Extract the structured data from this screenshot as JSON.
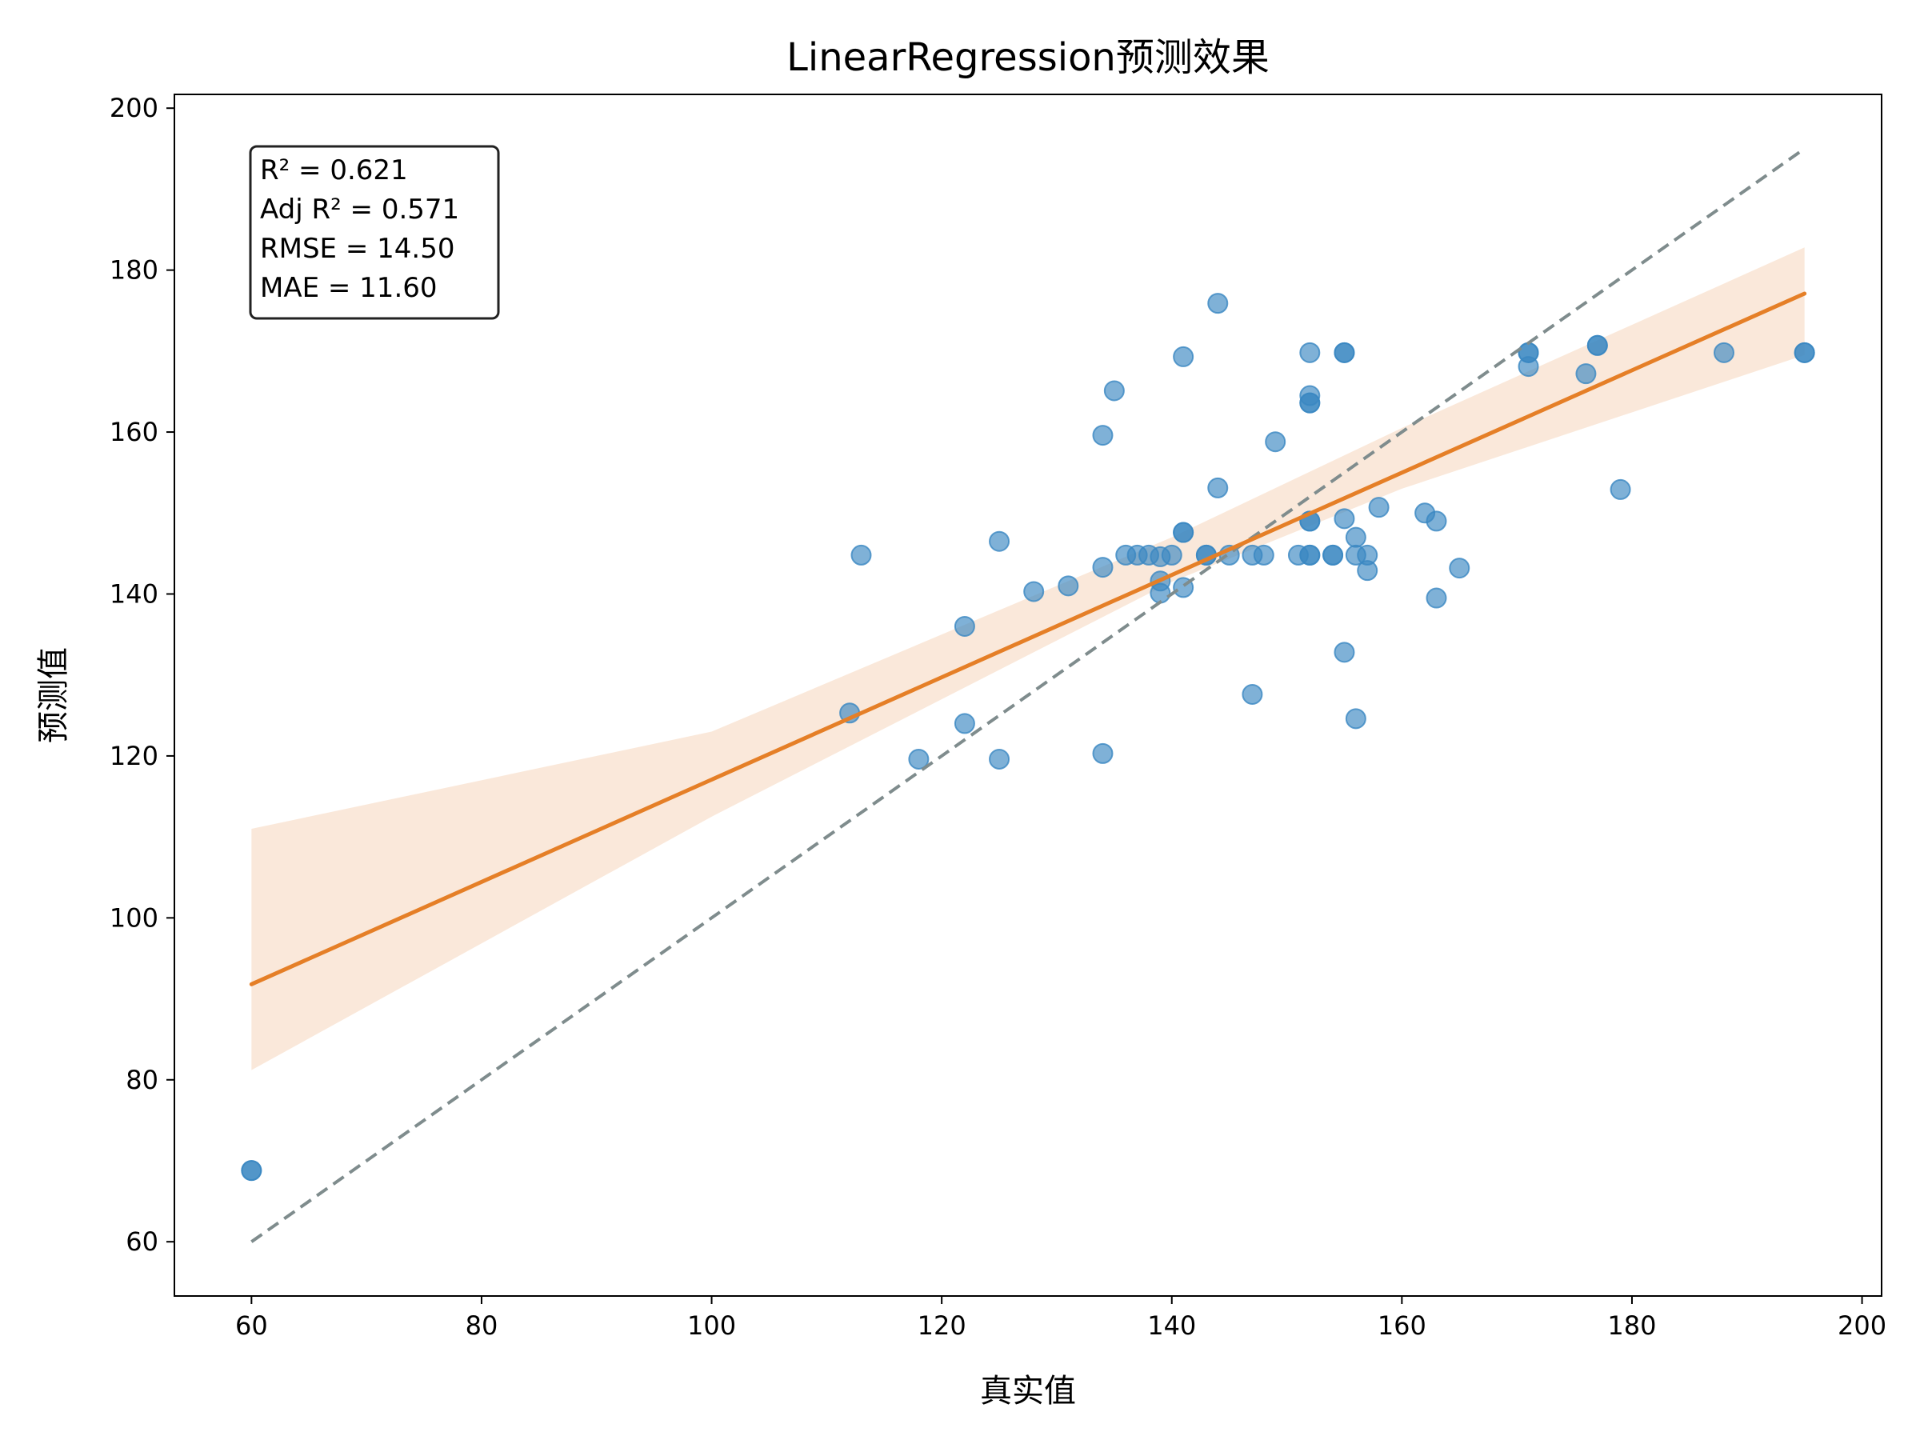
{
  "chart_data": {
    "type": "scatter",
    "title": "LinearRegression预测效果",
    "xlabel": "真实值",
    "ylabel": "预测值",
    "xlim": [
      53.3,
      201.7
    ],
    "ylim": [
      53.3,
      201.7
    ],
    "xticks": [
      60,
      80,
      100,
      120,
      140,
      160,
      180,
      200
    ],
    "yticks": [
      60,
      80,
      100,
      120,
      140,
      160,
      180,
      200
    ],
    "grid": false,
    "colors": {
      "points": "#3a87c2",
      "fit_line": "#e57f27",
      "ci_band": "#f8dcc6",
      "ideal_line": "#7f8c8d"
    },
    "stats_box": {
      "location": "top-left",
      "lines": [
        "R² = 0.621",
        "Adj R² = 0.571",
        "RMSE = 14.50",
        "MAE = 11.60"
      ]
    },
    "ideal_line": {
      "style": "dashed",
      "from": [
        60,
        60
      ],
      "to": [
        195,
        195
      ]
    },
    "fit_line": {
      "from": [
        60,
        91.8
      ],
      "to": [
        195,
        177.1
      ]
    },
    "confidence_band": {
      "x": [
        60,
        100,
        140,
        160,
        195
      ],
      "lower": [
        81.2,
        112.5,
        141.5,
        153.0,
        169.5
      ],
      "upper": [
        111.0,
        123.0,
        147.0,
        160.5,
        182.8
      ]
    },
    "points": [
      {
        "x": 60,
        "y": 68.8
      },
      {
        "x": 60,
        "y": 68.8
      },
      {
        "x": 112,
        "y": 125.3
      },
      {
        "x": 113,
        "y": 144.8
      },
      {
        "x": 118,
        "y": 119.6
      },
      {
        "x": 122,
        "y": 124.0
      },
      {
        "x": 122,
        "y": 136.0
      },
      {
        "x": 125,
        "y": 119.6
      },
      {
        "x": 125,
        "y": 146.5
      },
      {
        "x": 128,
        "y": 140.3
      },
      {
        "x": 131,
        "y": 141.0
      },
      {
        "x": 134,
        "y": 120.3
      },
      {
        "x": 134,
        "y": 143.3
      },
      {
        "x": 134,
        "y": 159.6
      },
      {
        "x": 135,
        "y": 165.1
      },
      {
        "x": 136,
        "y": 144.8
      },
      {
        "x": 137,
        "y": 144.8
      },
      {
        "x": 138,
        "y": 144.8
      },
      {
        "x": 139,
        "y": 141.6
      },
      {
        "x": 139,
        "y": 140.1
      },
      {
        "x": 139,
        "y": 144.6
      },
      {
        "x": 140,
        "y": 144.8
      },
      {
        "x": 141,
        "y": 140.8
      },
      {
        "x": 141,
        "y": 147.6
      },
      {
        "x": 141,
        "y": 147.6
      },
      {
        "x": 141,
        "y": 169.3
      },
      {
        "x": 143,
        "y": 144.8
      },
      {
        "x": 143,
        "y": 144.8
      },
      {
        "x": 144,
        "y": 153.1
      },
      {
        "x": 144,
        "y": 175.9
      },
      {
        "x": 145,
        "y": 144.8
      },
      {
        "x": 147,
        "y": 144.8
      },
      {
        "x": 147,
        "y": 127.6
      },
      {
        "x": 148,
        "y": 144.8
      },
      {
        "x": 149,
        "y": 158.8
      },
      {
        "x": 151,
        "y": 144.8
      },
      {
        "x": 152,
        "y": 144.8
      },
      {
        "x": 152,
        "y": 144.8
      },
      {
        "x": 152,
        "y": 149.0
      },
      {
        "x": 152,
        "y": 149.0
      },
      {
        "x": 152,
        "y": 163.6
      },
      {
        "x": 152,
        "y": 163.6
      },
      {
        "x": 152,
        "y": 164.5
      },
      {
        "x": 152,
        "y": 169.8
      },
      {
        "x": 154,
        "y": 144.8
      },
      {
        "x": 154,
        "y": 144.8
      },
      {
        "x": 155,
        "y": 132.8
      },
      {
        "x": 155,
        "y": 149.3
      },
      {
        "x": 155,
        "y": 169.8
      },
      {
        "x": 155,
        "y": 169.8
      },
      {
        "x": 156,
        "y": 124.6
      },
      {
        "x": 156,
        "y": 147.0
      },
      {
        "x": 156,
        "y": 144.8
      },
      {
        "x": 157,
        "y": 142.9
      },
      {
        "x": 157,
        "y": 144.8
      },
      {
        "x": 158,
        "y": 150.7
      },
      {
        "x": 162,
        "y": 150.0
      },
      {
        "x": 163,
        "y": 149.0
      },
      {
        "x": 163,
        "y": 139.5
      },
      {
        "x": 165,
        "y": 143.2
      },
      {
        "x": 171,
        "y": 168.1
      },
      {
        "x": 171,
        "y": 169.8
      },
      {
        "x": 171,
        "y": 169.8
      },
      {
        "x": 176,
        "y": 167.2
      },
      {
        "x": 177,
        "y": 170.7
      },
      {
        "x": 177,
        "y": 170.7
      },
      {
        "x": 179,
        "y": 152.9
      },
      {
        "x": 188,
        "y": 169.8
      },
      {
        "x": 195,
        "y": 169.8
      },
      {
        "x": 195,
        "y": 169.8
      }
    ]
  }
}
